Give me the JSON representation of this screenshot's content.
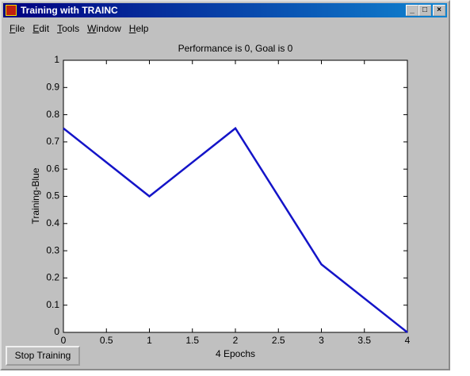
{
  "window": {
    "title": "Training with TRAINC",
    "menu": [
      "File",
      "Edit",
      "Tools",
      "Window",
      "Help"
    ],
    "button": "Stop Training"
  },
  "chart_data": {
    "type": "line",
    "title": "Performance is 0, Goal is 0",
    "x_label": "4 Epochs",
    "y_label": "Training-Blue",
    "x": [
      0,
      1,
      2,
      3,
      4
    ],
    "series": [
      {
        "name": "Training",
        "color": "#1414c8",
        "values": [
          0.75,
          0.5,
          0.75,
          0.25,
          0
        ]
      }
    ],
    "xlim": [
      0,
      4
    ],
    "xticks": [
      0,
      0.5,
      1,
      1.5,
      2,
      2.5,
      3,
      3.5,
      4
    ],
    "ylim": [
      0,
      1
    ],
    "yticks": [
      0,
      0.1,
      0.2,
      0.3,
      0.4,
      0.5,
      0.6,
      0.7,
      0.8,
      0.9,
      1
    ],
    "grid": false
  }
}
